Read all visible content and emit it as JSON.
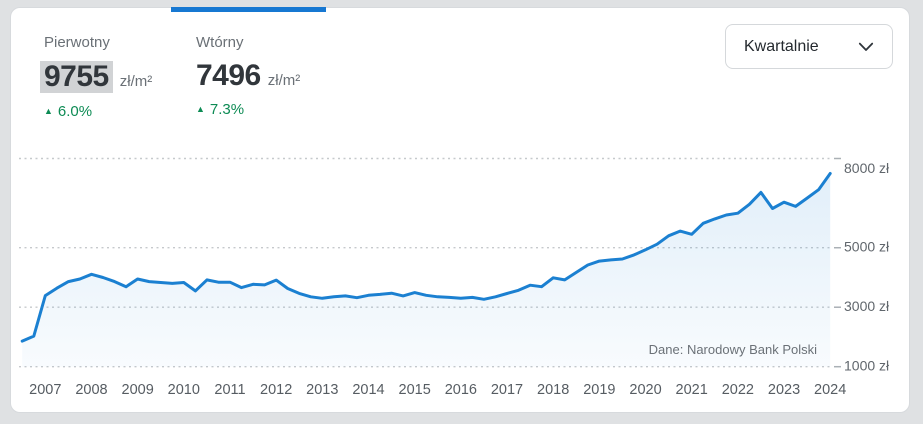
{
  "colors": {
    "accent_blue": "#1778d2",
    "line_blue": "#1b80d1",
    "positive_green": "#0d8b54",
    "value_highlight": "#d1d3d5"
  },
  "tabs": [
    {
      "id": "pierwotny",
      "label": "Pierwotny",
      "value": "9755",
      "unit": "zł/m²",
      "change": "6.0%",
      "trend": "up",
      "active": false
    },
    {
      "id": "wtorny",
      "label": "Wtórny",
      "value": "7496",
      "unit": "zł/m²",
      "change": "7.3%",
      "trend": "up",
      "active": true
    }
  ],
  "period_dropdown": {
    "value": "Kwartalnie"
  },
  "chart_data": {
    "type": "area",
    "title": "",
    "xlabel": "",
    "ylabel": "zł",
    "ylim": [
      1000,
      8000
    ],
    "grid": "horizontal-dotted",
    "legend": "none",
    "source_note": "Dane: Narodowy Bank Polski",
    "x_start": "2006 Q3",
    "x_end": "2024 Q1",
    "frequency": "quarterly",
    "x_tick_labels": [
      "2007",
      "2008",
      "2009",
      "2010",
      "2011",
      "2012",
      "2013",
      "2014",
      "2015",
      "2016",
      "2017",
      "2018",
      "2019",
      "2020",
      "2021",
      "2022",
      "2023",
      "2024"
    ],
    "y_ticks": [
      {
        "value": 8000,
        "label": "8000 zł"
      },
      {
        "value": 5000,
        "label": "5000 zł"
      },
      {
        "value": 3000,
        "label": "3000 zł"
      },
      {
        "value": 1000,
        "label": "1000 zł"
      }
    ],
    "series": [
      {
        "name": "Wtórny",
        "unit": "zł/m²",
        "values": [
          1860,
          2030,
          3390,
          3640,
          3860,
          3950,
          4105,
          4000,
          3860,
          3690,
          3950,
          3860,
          3830,
          3800,
          3830,
          3550,
          3920,
          3840,
          3840,
          3660,
          3770,
          3750,
          3910,
          3630,
          3465,
          3350,
          3300,
          3350,
          3380,
          3320,
          3400,
          3430,
          3470,
          3380,
          3490,
          3400,
          3350,
          3330,
          3300,
          3330,
          3265,
          3350,
          3460,
          3570,
          3740,
          3690,
          3990,
          3920,
          4170,
          4420,
          4550,
          4590,
          4620,
          4760,
          4930,
          5120,
          5400,
          5560,
          5450,
          5820,
          5970,
          6100,
          6160,
          6460,
          6860,
          6320,
          6530,
          6390,
          6670,
          6950,
          7496
        ]
      }
    ]
  }
}
